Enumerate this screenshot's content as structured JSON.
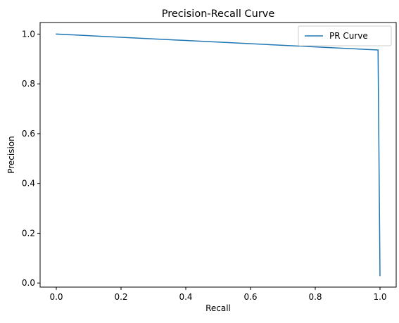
{
  "chart_data": {
    "type": "line",
    "title": "Precision-Recall Curve",
    "xlabel": "Recall",
    "ylabel": "Precision",
    "xlim": [
      -0.05,
      1.05
    ],
    "ylim": [
      -0.0164,
      1.0464
    ],
    "xticks": [
      0.0,
      0.2,
      0.4,
      0.6,
      0.8,
      1.0
    ],
    "xtick_labels": [
      "0.0",
      "0.2",
      "0.4",
      "0.6",
      "0.8",
      "1.0"
    ],
    "yticks": [
      0.0,
      0.2,
      0.4,
      0.6,
      0.8,
      1.0
    ],
    "ytick_labels": [
      "0.0",
      "0.2",
      "0.4",
      "0.6",
      "0.8",
      "1.0"
    ],
    "grid": false,
    "legend": "top-right",
    "series": [
      {
        "name": "PR Curve",
        "color": "#1f77b4",
        "x": [
          0.0,
          0.994,
          1.0
        ],
        "y": [
          1.0,
          0.936,
          0.03
        ]
      }
    ]
  }
}
